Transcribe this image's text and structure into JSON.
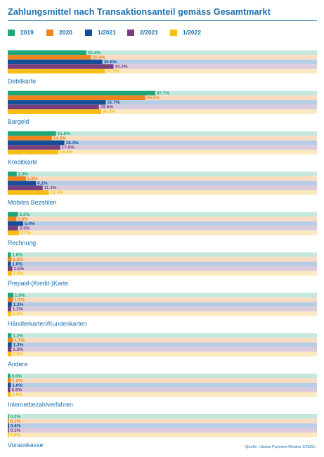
{
  "chart_data": {
    "type": "bar",
    "orientation": "horizontal",
    "title": "Zahlungsmittel nach Transaktionsanteil gemäss Gesamtmarkt",
    "categories": [
      "Debitkarte",
      "Bargeld",
      "Kreditkarte",
      "Mobiles Bezahlen",
      "Rechnung",
      "Prepaid-(Kredit-)Karte",
      "Händlerkarten/Kundenkarten",
      "Andere",
      "Internetbezahlverfahren",
      "Vorauskasse"
    ],
    "series": [
      {
        "name": "2019",
        "color": "#1fa77a",
        "band": "#c5e8dc",
        "values": [
          25.4,
          47.7,
          15.6,
          2.9,
          3.3,
          1.0,
          1.8,
          1.2,
          0.8,
          0.2
        ],
        "labels": [
          "25.4%",
          "47.7%",
          "15.6%",
          "2.9%",
          "3.3%",
          "1.0%",
          "1.8%",
          "1.2%",
          "0.8%",
          "0.2%"
        ]
      },
      {
        "name": "2020",
        "color": "#f0841f",
        "band": "#fbdcc0",
        "values": [
          26.9,
          44.5,
          14.3,
          5.9,
          2.8,
          1.2,
          1.7,
          1.7,
          1.0,
          0.1
        ],
        "labels": [
          "26.9%",
          "44.5%",
          "14.3%",
          "5.9%",
          "2.8%",
          "1.2%",
          "1.7%",
          "1.7%",
          "1.0%",
          "0.1%"
        ]
      },
      {
        "name": "1/2021",
        "color": "#124f96",
        "band": "#b7cde6",
        "values": [
          30.6,
          31.7,
          18.3,
          9.1,
          5.0,
          1.0,
          1.3,
          1.3,
          1.0,
          0.4
        ],
        "labels": [
          "30.6%",
          "31.7%",
          "18.3%",
          "9.1%",
          "5.0%",
          "1.0%",
          "1.3%",
          "1.3%",
          "1.0%",
          "0.4%"
        ]
      },
      {
        "name": "2/2021",
        "color": "#7b3e7d",
        "band": "#dccbdc",
        "values": [
          34.2,
          29.5,
          17.0,
          11.3,
          3.3,
          1.5,
          1.1,
          1.2,
          0.8,
          0.1
        ],
        "labels": [
          "34.2%",
          "29.5%",
          "17.0%",
          "11.3%",
          "3.3%",
          "1.5%",
          "1.1%",
          "1.2%",
          "0.8%",
          "0.1%"
        ]
      },
      {
        "name": "1/2022",
        "color": "#f6be16",
        "band": "#fbeac0",
        "values": [
          31.5,
          30.2,
          16.4,
          13.3,
          3.7,
          1.3,
          1.2,
          1.2,
          1.0,
          0.3
        ],
        "labels": [
          "31.5%",
          "30.2%",
          "16.4%",
          "13.3%",
          "3.7%",
          "1.3%",
          "1.2%",
          "1.2%",
          "1.0%",
          "0.3%"
        ]
      }
    ],
    "xlabel": "",
    "ylabel": "",
    "xlim": [
      0,
      100
    ],
    "grid": false,
    "legend": "top-left",
    "source": "Quelle: «Swiss Payment Monitor 1/2022»"
  },
  "colors": {
    "title": "#1c6fae",
    "category_label": "#1c6fae",
    "background": "#ffffff"
  }
}
